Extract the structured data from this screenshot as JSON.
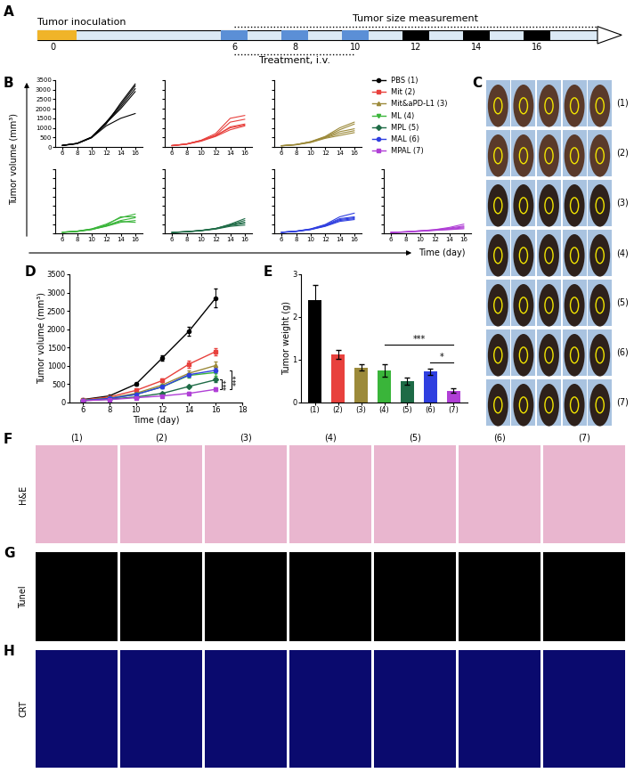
{
  "panel_labels": [
    "A",
    "B",
    "C",
    "D",
    "E",
    "F",
    "G",
    "H"
  ],
  "timeline": {
    "inoculation": "Tumor inoculation",
    "measurement": "Tumor size measurement",
    "treatment": "Treatment, i.v.",
    "days": [
      0,
      6,
      8,
      10,
      12,
      14,
      16
    ],
    "treatment_days": [
      6,
      8,
      10
    ],
    "measurement_days": [
      12,
      14,
      16
    ]
  },
  "groups": [
    {
      "name": "PBS",
      "label": "(1)",
      "color": "#000000",
      "marker": "circle"
    },
    {
      "name": "Mit",
      "label": "(2)",
      "color": "#e8413d",
      "marker": "square"
    },
    {
      "name": "Mit&aPD-L1",
      "label": "(3)",
      "color": "#9c8a3a",
      "marker": "triangle_up"
    },
    {
      "name": "ML",
      "label": "(4)",
      "color": "#3ab53a",
      "marker": "triangle_down"
    },
    {
      "name": "MPL",
      "label": "(5)",
      "color": "#1e6b46",
      "marker": "diamond"
    },
    {
      "name": "MAL",
      "label": "(6)",
      "color": "#2f3fe0",
      "marker": "circle"
    },
    {
      "name": "MPAL",
      "label": "(7)",
      "color": "#b03fd6",
      "marker": "square"
    }
  ],
  "panel_B_labels": {
    "xlabel": "Time (day)",
    "ylabel": "Tumor volume (mm³)"
  },
  "chart_data": [
    {
      "type": "line",
      "color": "#000000",
      "x": [
        6,
        8,
        10,
        12,
        14,
        16
      ],
      "series": [
        {
          "values": [
            70,
            170,
            480,
            1100,
            1500,
            1750
          ]
        },
        {
          "values": [
            80,
            180,
            500,
            1250,
            2000,
            2900
          ]
        },
        {
          "values": [
            85,
            185,
            520,
            1250,
            2100,
            3050
          ]
        },
        {
          "values": [
            80,
            190,
            510,
            1300,
            2200,
            3200
          ]
        },
        {
          "values": [
            90,
            175,
            490,
            1200,
            2300,
            3300
          ]
        }
      ],
      "xlim": [
        5,
        17
      ],
      "ylim": [
        0,
        3500
      ],
      "xticks": [
        6,
        8,
        10,
        12,
        14,
        16
      ],
      "yticks": [
        0,
        500,
        1000,
        1500,
        2000,
        2500,
        3000,
        3500
      ]
    },
    {
      "type": "line",
      "color": "#e8413d",
      "x": [
        6,
        8,
        10,
        12,
        14,
        16
      ],
      "series": [
        {
          "values": [
            60,
            140,
            300,
            550,
            900,
            1100
          ]
        },
        {
          "values": [
            70,
            150,
            330,
            600,
            1000,
            1150
          ]
        },
        {
          "values": [
            75,
            155,
            340,
            580,
            1050,
            1200
          ]
        },
        {
          "values": [
            70,
            160,
            320,
            620,
            1300,
            1450
          ]
        },
        {
          "values": [
            80,
            150,
            350,
            700,
            1500,
            1650
          ]
        }
      ],
      "xlim": [
        5,
        17
      ],
      "ylim": [
        0,
        3500
      ],
      "xticks": [
        6,
        8,
        10,
        12,
        14,
        16
      ],
      "yticks": [
        0,
        500,
        1000,
        1500,
        2000,
        2500,
        3000,
        3500
      ],
      "tick_labels": "x"
    },
    {
      "type": "line",
      "color": "#9c8a3a",
      "x": [
        6,
        8,
        10,
        12,
        14,
        16
      ],
      "series": [
        {
          "values": [
            60,
            110,
            230,
            450,
            600,
            750
          ]
        },
        {
          "values": [
            55,
            120,
            250,
            480,
            700,
            850
          ]
        },
        {
          "values": [
            65,
            125,
            260,
            500,
            800,
            950
          ]
        },
        {
          "values": [
            60,
            130,
            270,
            520,
            900,
            1200
          ]
        },
        {
          "values": [
            70,
            120,
            280,
            550,
            1000,
            1300
          ]
        }
      ],
      "xlim": [
        5,
        17
      ],
      "ylim": [
        0,
        3500
      ],
      "xticks": [
        6,
        8,
        10,
        12,
        14,
        16
      ],
      "yticks": [
        0,
        500,
        1000,
        1500,
        2000,
        2500,
        3000,
        3500
      ],
      "tick_labels": "x"
    },
    {
      "type": "line",
      "color": "#3ab53a",
      "x": [
        6,
        8,
        10,
        12,
        14,
        16
      ],
      "series": [
        {
          "values": [
            50,
            100,
            200,
            400,
            650,
            600
          ]
        },
        {
          "values": [
            55,
            110,
            220,
            420,
            700,
            850
          ]
        },
        {
          "values": [
            60,
            115,
            230,
            450,
            900,
            900
          ]
        },
        {
          "values": [
            65,
            105,
            210,
            380,
            600,
            700
          ]
        },
        {
          "values": [
            60,
            120,
            240,
            500,
            850,
            1050
          ]
        }
      ],
      "xlim": [
        5,
        17
      ],
      "ylim": [
        0,
        3500
      ],
      "xticks": [
        6,
        8,
        10,
        12,
        14,
        16
      ],
      "yticks": [
        0,
        500,
        1000,
        1500,
        2000,
        2500,
        3000,
        3500
      ],
      "tick_labels": "x"
    },
    {
      "type": "line",
      "color": "#1e6b46",
      "x": [
        6,
        8,
        10,
        12,
        14,
        16
      ],
      "series": [
        {
          "values": [
            45,
            80,
            140,
            230,
            380,
            450
          ]
        },
        {
          "values": [
            50,
            85,
            150,
            250,
            420,
            550
          ]
        },
        {
          "values": [
            50,
            90,
            150,
            260,
            450,
            600
          ]
        },
        {
          "values": [
            55,
            95,
            160,
            270,
            470,
            700
          ]
        },
        {
          "values": [
            50,
            90,
            155,
            250,
            500,
            800
          ]
        }
      ],
      "xlim": [
        5,
        17
      ],
      "ylim": [
        0,
        3500
      ],
      "xticks": [
        6,
        8,
        10,
        12,
        14,
        16
      ],
      "yticks": [
        0,
        500,
        1000,
        1500,
        2000,
        2500,
        3000,
        3500
      ],
      "tick_labels": "x"
    },
    {
      "type": "line",
      "color": "#2f3fe0",
      "x": [
        6,
        8,
        10,
        12,
        14,
        16
      ],
      "series": [
        {
          "values": [
            50,
            100,
            200,
            380,
            650,
            750
          ]
        },
        {
          "values": [
            55,
            110,
            210,
            400,
            700,
            800
          ]
        },
        {
          "values": [
            60,
            105,
            220,
            420,
            750,
            850
          ]
        },
        {
          "values": [
            55,
            115,
            230,
            450,
            800,
            900
          ]
        },
        {
          "values": [
            60,
            120,
            240,
            480,
            900,
            1100
          ]
        }
      ],
      "xlim": [
        5,
        17
      ],
      "ylim": [
        0,
        3500
      ],
      "xticks": [
        6,
        8,
        10,
        12,
        14,
        16
      ],
      "yticks": [
        0,
        500,
        1000,
        1500,
        2000,
        2500,
        3000,
        3500
      ],
      "tick_labels": "x"
    },
    {
      "type": "line",
      "color": "#b03fd6",
      "x": [
        6,
        8,
        10,
        12,
        14,
        16
      ],
      "series": [
        {
          "values": [
            45,
            70,
            110,
            160,
            200,
            250
          ]
        },
        {
          "values": [
            50,
            75,
            120,
            170,
            220,
            300
          ]
        },
        {
          "values": [
            50,
            80,
            130,
            180,
            250,
            350
          ]
        },
        {
          "values": [
            55,
            85,
            135,
            190,
            280,
            400
          ]
        },
        {
          "values": [
            50,
            80,
            140,
            200,
            320,
            500
          ]
        }
      ],
      "xlim": [
        5,
        17
      ],
      "ylim": [
        0,
        3500
      ],
      "xticks": [
        6,
        8,
        10,
        12,
        14,
        16
      ],
      "yticks": [
        0,
        500,
        1000,
        1500,
        2000,
        2500,
        3000,
        3500
      ],
      "tick_labels": "x"
    },
    {
      "type": "line",
      "x": [
        6,
        8,
        10,
        12,
        14,
        16
      ],
      "xlabel": "Time (day)",
      "ylabel": "Tumor volume (mm³)",
      "series": [
        {
          "name": "PBS",
          "color": "#000000",
          "marker": "circle",
          "values": [
            80,
            180,
            500,
            1220,
            1950,
            2850
          ],
          "errors": [
            10,
            20,
            40,
            80,
            120,
            250
          ]
        },
        {
          "name": "Mit",
          "color": "#e8413d",
          "marker": "square",
          "values": [
            70,
            150,
            330,
            600,
            1050,
            1390
          ],
          "errors": [
            5,
            10,
            20,
            50,
            100,
            100
          ]
        },
        {
          "name": "Mit&aPD-L1",
          "color": "#9c8a3a",
          "marker": "triangle_up",
          "values": [
            60,
            120,
            250,
            480,
            800,
            1010
          ],
          "errors": [
            5,
            10,
            20,
            40,
            80,
            110
          ]
        },
        {
          "name": "ML",
          "color": "#3ab53a",
          "marker": "triangle_down",
          "values": [
            60,
            110,
            220,
            430,
            740,
            820
          ],
          "errors": [
            5,
            5,
            10,
            30,
            60,
            80
          ]
        },
        {
          "name": "MPL",
          "color": "#1e6b46",
          "marker": "diamond",
          "values": [
            50,
            90,
            150,
            250,
            440,
            620
          ],
          "errors": [
            5,
            5,
            10,
            20,
            30,
            60
          ]
        },
        {
          "name": "MAL",
          "color": "#2f3fe0",
          "marker": "circle",
          "values": [
            55,
            110,
            220,
            430,
            760,
            880
          ],
          "errors": [
            5,
            5,
            10,
            30,
            50,
            70
          ]
        },
        {
          "name": "MPAL",
          "color": "#b03fd6",
          "marker": "square",
          "values": [
            50,
            80,
            130,
            180,
            250,
            360
          ],
          "errors": [
            5,
            5,
            10,
            15,
            30,
            50
          ]
        }
      ],
      "xlim": [
        5,
        18
      ],
      "ylim": [
        0,
        3500
      ],
      "xticks": [
        6,
        8,
        10,
        12,
        14,
        16,
        18
      ],
      "yticks": [
        0,
        500,
        1000,
        1500,
        2000,
        2500,
        3000,
        3500
      ],
      "annotations": [
        {
          "text": "***",
          "between": [
            "MPL",
            "MPAL"
          ]
        },
        {
          "text": "***",
          "between": [
            "MAL",
            "MPAL"
          ]
        }
      ]
    },
    {
      "type": "bar",
      "categories": [
        "(1)",
        "(2)",
        "(3)",
        "(4)",
        "(5)",
        "(6)",
        "(7)"
      ],
      "values": [
        2.4,
        1.12,
        0.82,
        0.75,
        0.5,
        0.72,
        0.28
      ],
      "errors": [
        0.35,
        0.1,
        0.08,
        0.15,
        0.08,
        0.07,
        0.05
      ],
      "colors": [
        "#000000",
        "#e8413d",
        "#9c8a3a",
        "#3ab53a",
        "#1e6b46",
        "#2f3fe0",
        "#b03fd6"
      ],
      "ylabel": "Tumor weight (g)",
      "ylim": [
        0,
        3
      ],
      "yticks": [
        0,
        1,
        2,
        3
      ],
      "annotations": [
        {
          "text": "*",
          "between": [
            "(6)",
            "(7)"
          ]
        },
        {
          "text": "***",
          "between": [
            "(4)",
            "(7)"
          ]
        }
      ]
    }
  ],
  "histology": {
    "rows": [
      "H&E",
      "Tunel",
      "CRT"
    ]
  }
}
